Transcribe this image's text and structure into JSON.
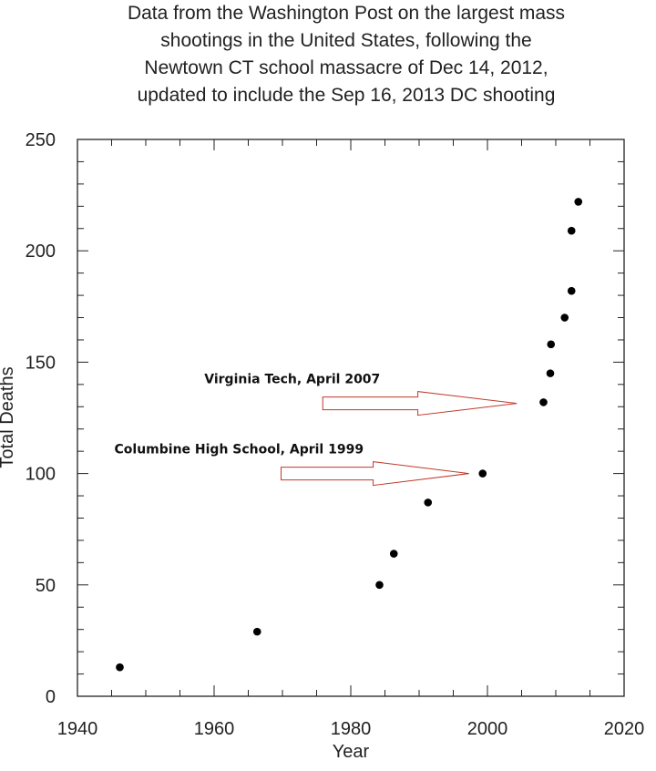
{
  "chart_data": {
    "type": "scatter",
    "title_lines": [
      "Data from the Washington Post on the largest mass",
      "shootings in the United States, following the",
      "Newtown CT school massacre of Dec 14, 2012,",
      "updated to include the Sep 16, 2013 DC shooting"
    ],
    "xlabel": "Year",
    "ylabel": "Total Deaths",
    "xlim": [
      1940,
      2020
    ],
    "ylim": [
      0,
      250
    ],
    "x_ticks": [
      1940,
      1960,
      1980,
      2000,
      2020
    ],
    "y_ticks": [
      0,
      50,
      100,
      150,
      200,
      250
    ],
    "x_minor_step": 5,
    "y_minor_step": 10,
    "grid": false,
    "point_color": "#000000",
    "points": [
      {
        "x": 1946.2,
        "y": 13
      },
      {
        "x": 1966.3,
        "y": 29
      },
      {
        "x": 1984.2,
        "y": 50
      },
      {
        "x": 1986.3,
        "y": 64
      },
      {
        "x": 1991.3,
        "y": 87
      },
      {
        "x": 1999.3,
        "y": 100
      },
      {
        "x": 2008.2,
        "y": 132
      },
      {
        "x": 2009.2,
        "y": 145
      },
      {
        "x": 2009.3,
        "y": 158
      },
      {
        "x": 2011.3,
        "y": 170
      },
      {
        "x": 2012.3,
        "y": 182
      },
      {
        "x": 2012.3,
        "y": 209
      },
      {
        "x": 2013.3,
        "y": 222
      }
    ],
    "annotations": [
      {
        "text": "Virginia Tech, April 2007",
        "arrow_from": [
          1975.9,
          131.5
        ],
        "arrow_to": [
          2004.3,
          131.5
        ]
      },
      {
        "text": "Columbine High School, April 1999",
        "arrow_from": [
          1969.8,
          100
        ],
        "arrow_to": [
          1997.3,
          100
        ]
      }
    ],
    "arrow_color": "#c0392b"
  }
}
